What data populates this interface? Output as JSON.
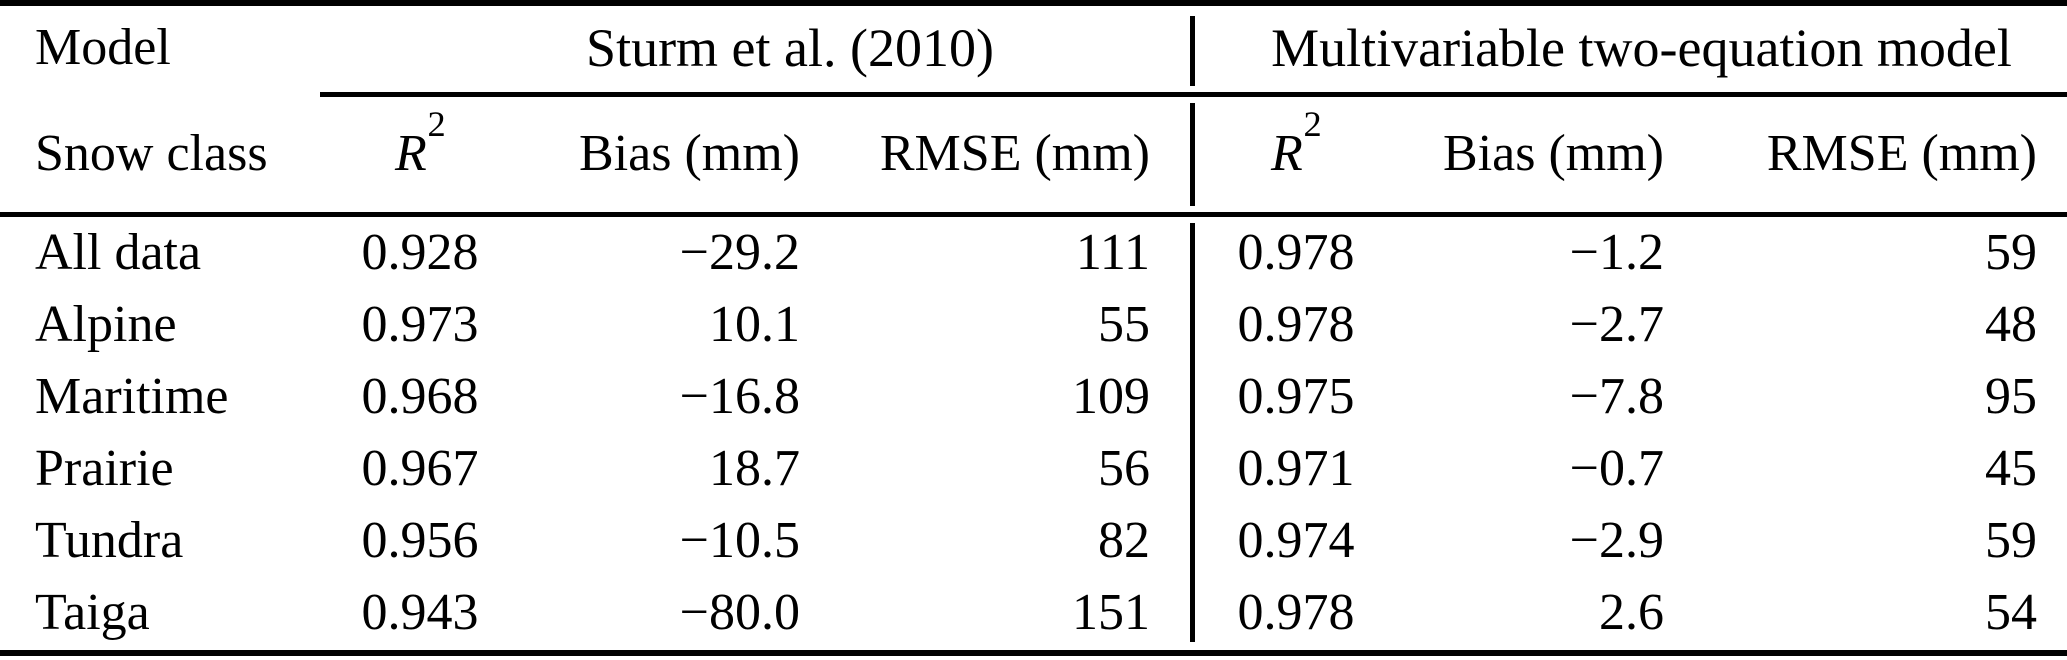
{
  "colors": {
    "text": "#000000",
    "background": "#ffffff",
    "rule": "#000000"
  },
  "table": {
    "corner": {
      "line1": "Model",
      "line2": "Snow class"
    },
    "groups": [
      {
        "label": "Sturm et al. (2010)"
      },
      {
        "label": "Multivariable two-equation model"
      }
    ],
    "col_headers": {
      "r2_base": "R",
      "r2_sup": "2",
      "bias": "Bias (mm)",
      "rmse": "RMSE (mm)"
    },
    "rows": [
      {
        "snow_class": "All data",
        "s_r2": "0.928",
        "s_bias": "−29.2",
        "s_rmse": "111",
        "m_r2": "0.978",
        "m_bias": "−1.2",
        "m_rmse": "59"
      },
      {
        "snow_class": "Alpine",
        "s_r2": "0.973",
        "s_bias": "10.1",
        "s_rmse": "55",
        "m_r2": "0.978",
        "m_bias": "−2.7",
        "m_rmse": "48"
      },
      {
        "snow_class": "Maritime",
        "s_r2": "0.968",
        "s_bias": "−16.8",
        "s_rmse": "109",
        "m_r2": "0.975",
        "m_bias": "−7.8",
        "m_rmse": "95"
      },
      {
        "snow_class": "Prairie",
        "s_r2": "0.967",
        "s_bias": "18.7",
        "s_rmse": "56",
        "m_r2": "0.971",
        "m_bias": "−0.7",
        "m_rmse": "45"
      },
      {
        "snow_class": "Tundra",
        "s_r2": "0.956",
        "s_bias": "−10.5",
        "s_rmse": "82",
        "m_r2": "0.974",
        "m_bias": "−2.9",
        "m_rmse": "59"
      },
      {
        "snow_class": "Taiga",
        "s_r2": "0.943",
        "s_bias": "−80.0",
        "s_rmse": "151",
        "m_r2": "0.978",
        "m_bias": "2.6",
        "m_rmse": "54"
      }
    ]
  }
}
